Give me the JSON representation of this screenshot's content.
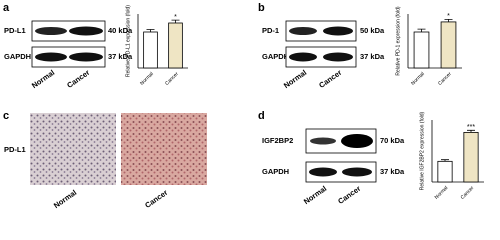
{
  "panels": {
    "a": {
      "letter": "a",
      "rows": [
        {
          "protein": "PD-L1",
          "size": "40 kDa"
        },
        {
          "protein": "GAPDH",
          "size": "37 kDa"
        }
      ],
      "lanes": [
        "Normal",
        "Cancer"
      ]
    },
    "b": {
      "letter": "b",
      "rows": [
        {
          "protein": "PD-1",
          "size": "50 kDa"
        },
        {
          "protein": "GAPDH",
          "size": "37 kDa"
        }
      ],
      "lanes": [
        "Normal",
        "Cancer"
      ]
    },
    "c": {
      "letter": "c",
      "stain": "PD-L1",
      "images": [
        "Normal",
        "Cancer"
      ]
    },
    "d": {
      "letter": "d",
      "rows": [
        {
          "protein": "IGF2BP2",
          "size": "70 kDa"
        },
        {
          "protein": "GAPDH",
          "size": "37 kDa"
        }
      ],
      "lanes": [
        "Normal",
        "Cancer"
      ]
    }
  },
  "chart_data": [
    {
      "type": "bar",
      "ylabel": "Relative PD-L1 expression (fold)",
      "categories": [
        "Normal",
        "Cancer"
      ],
      "values": [
        1.0,
        1.25
      ],
      "errors": [
        0.07,
        0.08
      ],
      "colors": [
        "#ffffff",
        "#efe5c4"
      ],
      "ylim": [
        0,
        1.5
      ],
      "annotation": "*"
    },
    {
      "type": "bar",
      "ylabel": "Relative PD-1 expression (fold)",
      "categories": [
        "Normal",
        "Cancer"
      ],
      "values": [
        1.0,
        1.28
      ],
      "errors": [
        0.08,
        0.07
      ],
      "colors": [
        "#ffffff",
        "#efe5c4"
      ],
      "ylim": [
        0,
        1.5
      ],
      "annotation": "*"
    },
    {
      "type": "bar",
      "ylabel": "Relative IGF2BP2 expression (fold)",
      "categories": [
        "Normal",
        "Cancer"
      ],
      "values": [
        1.0,
        2.4
      ],
      "errors": [
        0.08,
        0.1
      ],
      "colors": [
        "#ffffff",
        "#efe5c4"
      ],
      "ylim": [
        0,
        3
      ],
      "annotation": "***"
    }
  ]
}
